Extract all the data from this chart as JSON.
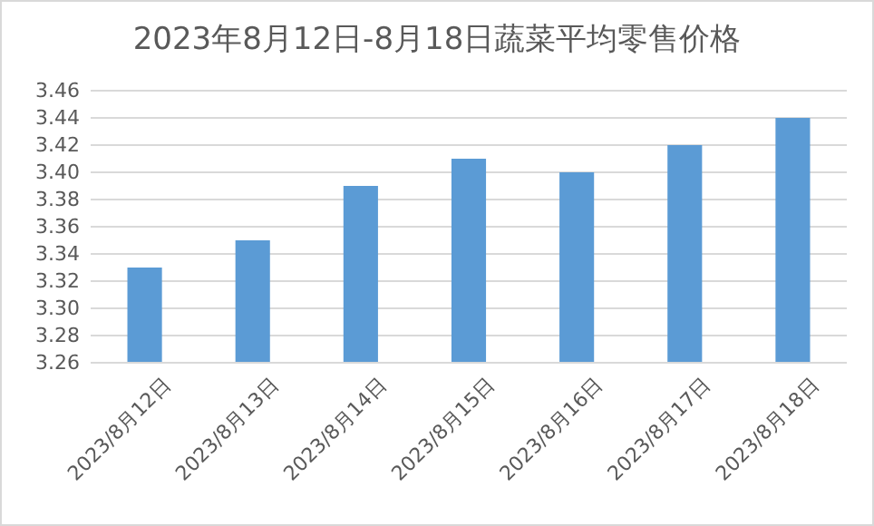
{
  "chart_data": {
    "type": "bar",
    "title": "2023年8月12日-8月18日蔬菜平均零售价格",
    "categories": [
      "2023/8月12日",
      "2023/8月13日",
      "2023/8月14日",
      "2023/8月15日",
      "2023/8月16日",
      "2023/8月17日",
      "2023/8月18日"
    ],
    "values": [
      3.33,
      3.35,
      3.39,
      3.41,
      3.4,
      3.42,
      3.44
    ],
    "color": "#5b9bd5",
    "ylim": [
      3.26,
      3.46
    ],
    "yticks": [
      {
        "value": 3.26,
        "label": "3.26"
      },
      {
        "value": 3.28,
        "label": "3.28"
      },
      {
        "value": 3.3,
        "label": "3.30"
      },
      {
        "value": 3.32,
        "label": "3.32"
      },
      {
        "value": 3.34,
        "label": "3.34"
      },
      {
        "value": 3.36,
        "label": "3.36"
      },
      {
        "value": 3.38,
        "label": "3.38"
      },
      {
        "value": 3.4,
        "label": "3.40"
      },
      {
        "value": 3.42,
        "label": "3.42"
      },
      {
        "value": 3.44,
        "label": "3.44"
      },
      {
        "value": 3.46,
        "label": "3.46"
      }
    ],
    "grid": true
  }
}
